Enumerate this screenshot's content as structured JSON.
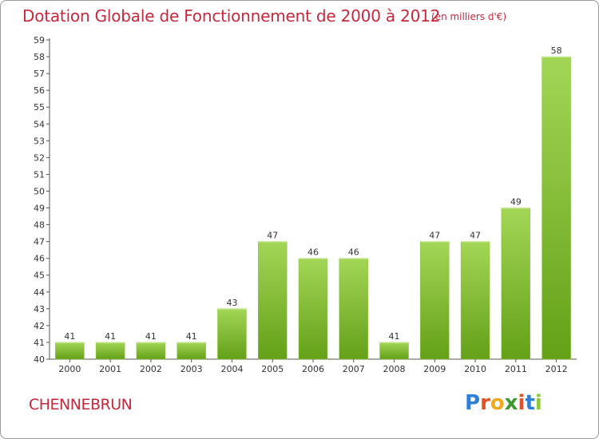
{
  "title": "Dotation Globale de Fonctionnement de 2000 à 2012",
  "subtitle": "(en milliers d'€)",
  "commune": "CHENNEBRUN",
  "logo": {
    "letters": [
      "P",
      "r",
      "o",
      "x",
      "i",
      "t",
      "i"
    ],
    "colors": [
      "#2f7fd6",
      "#e8501f",
      "#f1a81a",
      "#3b9a2f",
      "#e8501f",
      "#2f7fd6",
      "#8cc83b"
    ]
  },
  "colors": {
    "bar_light": "#9ed24e",
    "bar_dark": "#67a31a",
    "text_accent": "#c8283c"
  },
  "chart_data": {
    "type": "bar",
    "categories": [
      "2000",
      "2001",
      "2002",
      "2003",
      "2004",
      "2005",
      "2006",
      "2007",
      "2008",
      "2009",
      "2010",
      "2011",
      "2012"
    ],
    "values": [
      41,
      41,
      41,
      41,
      43,
      47,
      46,
      46,
      41,
      47,
      47,
      49,
      58
    ],
    "ylim": [
      40,
      59
    ],
    "yticks": [
      40,
      41,
      42,
      43,
      44,
      45,
      46,
      47,
      48,
      49,
      50,
      51,
      52,
      53,
      54,
      55,
      56,
      57,
      58,
      59
    ],
    "xlabel": "",
    "ylabel": "",
    "grid": false
  }
}
